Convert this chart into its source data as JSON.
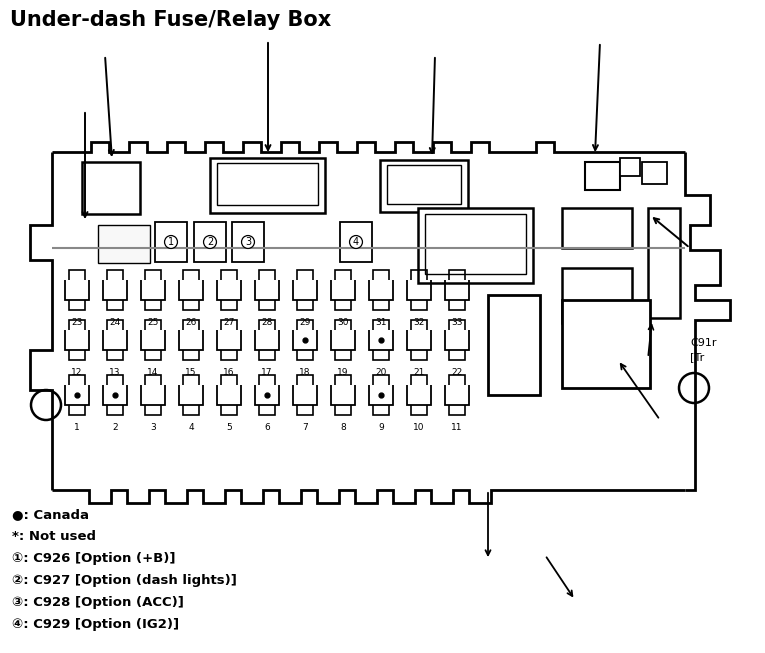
{
  "title": "Under-dash Fuse/Relay Box",
  "bg": "#ffffff",
  "lc": "#000000",
  "title_fs": 15,
  "legend_lines": [
    "●: Canada",
    "*: Not used",
    "①: C926 [Option (+B)]",
    "②: C927 [Option (dash lights)]",
    "③: C928 [Option (ACC)]",
    "④: C929 [Option (IG2)]"
  ],
  "side_label": "C91r\n[Tr",
  "row1_nums": [
    23,
    24,
    25,
    26,
    27,
    28,
    29,
    30,
    31,
    32,
    33
  ],
  "row2_nums": [
    12,
    13,
    14,
    15,
    16,
    17,
    18,
    19,
    20,
    21,
    22
  ],
  "row3_nums": [
    1,
    2,
    3,
    4,
    5,
    6,
    7,
    8,
    9,
    10,
    11
  ],
  "canada_dots_row2": [
    18,
    20
  ],
  "canada_dots_row3": [
    1,
    2,
    6,
    9
  ]
}
